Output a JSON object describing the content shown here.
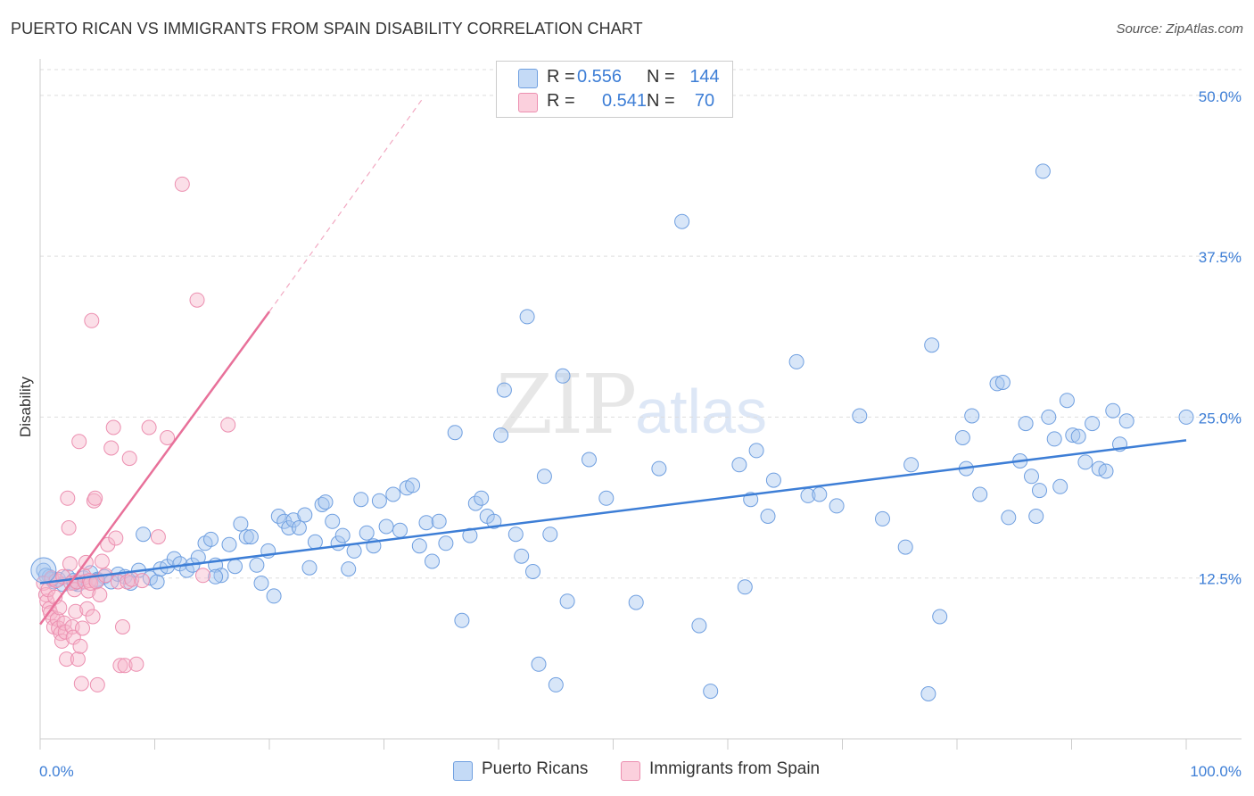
{
  "title": "PUERTO RICAN VS IMMIGRANTS FROM SPAIN DISABILITY CORRELATION CHART",
  "source": "Source: ZipAtlas.com",
  "watermark": {
    "part1": "ZIP",
    "part2": "atlas"
  },
  "legend_box": {
    "rows": [
      {
        "r_label": "R =",
        "r_value": "0.556",
        "n_label": "N =",
        "n_value": "144",
        "color": "#a9c8f0"
      },
      {
        "r_label": "R =",
        "r_value": "0.541",
        "n_label": "N =",
        "n_value": "70",
        "color": "#f6b8cb"
      }
    ]
  },
  "bottom_legend": [
    {
      "label": "Puerto Ricans",
      "color": "#a9c8f0"
    },
    {
      "label": "Immigrants from Spain",
      "color": "#f6b8cb"
    }
  ],
  "chart_data": {
    "type": "scatter",
    "title": "PUERTO RICAN VS IMMIGRANTS FROM SPAIN DISABILITY CORRELATION CHART",
    "xlabel": "",
    "ylabel": "Disability",
    "xlim": [
      0,
      100
    ],
    "ylim": [
      0,
      52
    ],
    "x_ticks_labels": [
      "0.0%",
      "100.0%"
    ],
    "y_ticks": [
      12.5,
      25.0,
      37.5,
      50.0
    ],
    "y_ticks_labels": [
      "12.5%",
      "25.0%",
      "37.5%",
      "50.0%"
    ],
    "grid": true,
    "colors": {
      "blue": "#3d7ed6",
      "pink": "#e8719a",
      "blue_fill": "#a9c8f0",
      "pink_fill": "#f6b8cb"
    },
    "series": [
      {
        "name": "Puerto Ricans",
        "color": "#3d7ed6",
        "trend": {
          "x": [
            0,
            100
          ],
          "y": [
            12.1,
            23.2
          ],
          "style": "solid"
        },
        "points": [
          [
            0.3,
            13.1
          ],
          [
            0.8,
            12.6
          ],
          [
            1.2,
            12.2
          ],
          [
            1.6,
            12.4
          ],
          [
            2.0,
            12.0
          ],
          [
            2.4,
            12.6
          ],
          [
            2.9,
            12.3
          ],
          [
            3.3,
            12.0
          ],
          [
            3.8,
            12.5
          ],
          [
            4.4,
            12.9
          ],
          [
            5.0,
            12.4
          ],
          [
            5.6,
            12.6
          ],
          [
            6.2,
            12.2
          ],
          [
            6.8,
            12.8
          ],
          [
            7.4,
            12.6
          ],
          [
            7.9,
            12.1
          ],
          [
            8.6,
            13.1
          ],
          [
            9.0,
            15.9
          ],
          [
            9.6,
            12.5
          ],
          [
            10.2,
            12.2
          ],
          [
            10.5,
            13.2
          ],
          [
            11.1,
            13.4
          ],
          [
            11.7,
            14.0
          ],
          [
            12.2,
            13.6
          ],
          [
            12.8,
            13.1
          ],
          [
            13.3,
            13.5
          ],
          [
            13.8,
            14.1
          ],
          [
            14.4,
            15.2
          ],
          [
            14.9,
            15.5
          ],
          [
            15.3,
            13.5
          ],
          [
            15.8,
            12.7
          ],
          [
            16.5,
            15.1
          ],
          [
            17.0,
            13.4
          ],
          [
            17.5,
            16.7
          ],
          [
            18.0,
            15.7
          ],
          [
            18.4,
            15.7
          ],
          [
            18.9,
            13.5
          ],
          [
            19.3,
            12.1
          ],
          [
            19.9,
            14.6
          ],
          [
            20.4,
            11.1
          ],
          [
            20.8,
            17.3
          ],
          [
            21.3,
            16.9
          ],
          [
            21.7,
            16.4
          ],
          [
            22.1,
            17.0
          ],
          [
            22.6,
            16.4
          ],
          [
            23.1,
            17.4
          ],
          [
            23.5,
            13.3
          ],
          [
            24.0,
            15.3
          ],
          [
            24.6,
            18.2
          ],
          [
            24.9,
            18.4
          ],
          [
            25.5,
            16.9
          ],
          [
            26.0,
            15.2
          ],
          [
            26.4,
            15.8
          ],
          [
            26.9,
            13.2
          ],
          [
            27.4,
            14.6
          ],
          [
            28.0,
            18.6
          ],
          [
            28.5,
            16.0
          ],
          [
            29.1,
            15.0
          ],
          [
            29.6,
            18.5
          ],
          [
            30.2,
            16.5
          ],
          [
            30.8,
            19.0
          ],
          [
            31.4,
            16.2
          ],
          [
            32.0,
            19.5
          ],
          [
            32.5,
            19.7
          ],
          [
            33.1,
            15.0
          ],
          [
            33.7,
            16.8
          ],
          [
            34.2,
            13.8
          ],
          [
            34.8,
            16.9
          ],
          [
            35.4,
            15.2
          ],
          [
            36.2,
            23.8
          ],
          [
            36.8,
            9.2
          ],
          [
            37.5,
            15.8
          ],
          [
            38.0,
            18.3
          ],
          [
            38.5,
            18.7
          ],
          [
            39.0,
            17.3
          ],
          [
            39.6,
            16.9
          ],
          [
            40.2,
            23.6
          ],
          [
            40.5,
            27.1
          ],
          [
            41.5,
            15.9
          ],
          [
            42.0,
            14.2
          ],
          [
            42.5,
            32.8
          ],
          [
            43.0,
            13.0
          ],
          [
            43.5,
            5.8
          ],
          [
            44.0,
            20.4
          ],
          [
            44.5,
            15.9
          ],
          [
            45.0,
            4.2
          ],
          [
            45.6,
            28.2
          ],
          [
            46.0,
            10.7
          ],
          [
            47.9,
            21.7
          ],
          [
            49.4,
            18.7
          ],
          [
            52.0,
            10.6
          ],
          [
            54.0,
            21.0
          ],
          [
            56.0,
            40.2
          ],
          [
            57.5,
            8.8
          ],
          [
            58.5,
            3.7
          ],
          [
            61.0,
            21.3
          ],
          [
            61.5,
            11.8
          ],
          [
            62.0,
            18.6
          ],
          [
            62.5,
            22.4
          ],
          [
            63.5,
            17.3
          ],
          [
            64.0,
            20.1
          ],
          [
            66.0,
            29.3
          ],
          [
            67.0,
            18.9
          ],
          [
            68.0,
            19.0
          ],
          [
            69.5,
            18.1
          ],
          [
            71.5,
            25.1
          ],
          [
            73.5,
            17.1
          ],
          [
            75.5,
            14.9
          ],
          [
            76.0,
            21.3
          ],
          [
            77.5,
            3.5
          ],
          [
            77.8,
            30.6
          ],
          [
            78.5,
            9.5
          ],
          [
            80.5,
            23.4
          ],
          [
            80.8,
            21.0
          ],
          [
            81.3,
            25.1
          ],
          [
            82.0,
            19.0
          ],
          [
            83.5,
            27.6
          ],
          [
            84.0,
            27.7
          ],
          [
            84.5,
            17.2
          ],
          [
            85.5,
            21.6
          ],
          [
            86.0,
            24.5
          ],
          [
            86.5,
            20.4
          ],
          [
            86.9,
            17.3
          ],
          [
            87.2,
            19.3
          ],
          [
            87.5,
            44.1
          ],
          [
            88.0,
            25.0
          ],
          [
            88.5,
            23.3
          ],
          [
            89.0,
            19.6
          ],
          [
            89.6,
            26.3
          ],
          [
            90.1,
            23.6
          ],
          [
            90.6,
            23.5
          ],
          [
            91.2,
            21.5
          ],
          [
            91.8,
            24.5
          ],
          [
            92.4,
            21.0
          ],
          [
            93.0,
            20.8
          ],
          [
            93.6,
            25.5
          ],
          [
            94.2,
            22.9
          ],
          [
            94.8,
            24.7
          ],
          [
            100,
            25.0
          ],
          [
            15.3,
            12.6
          ],
          [
            5.0,
            12.3
          ],
          [
            3.0,
            12.1
          ],
          [
            1.0,
            12.4
          ],
          [
            0.5,
            12.7
          ]
        ]
      },
      {
        "name": "Immigrants from Spain",
        "color": "#e8719a",
        "trend": {
          "x": [
            0,
            20
          ],
          "y": [
            8.9,
            33.2
          ],
          "style": "solid",
          "extended_x": [
            20,
            33.5
          ],
          "extended_y": [
            33.2,
            49.9
          ]
        },
        "points": [
          [
            0.3,
            12.1
          ],
          [
            0.5,
            11.2
          ],
          [
            0.6,
            10.7
          ],
          [
            0.7,
            11.6
          ],
          [
            0.8,
            10.1
          ],
          [
            0.9,
            9.8
          ],
          [
            1.0,
            12.5
          ],
          [
            1.1,
            9.4
          ],
          [
            1.2,
            8.7
          ],
          [
            1.3,
            11.0
          ],
          [
            1.4,
            12.3
          ],
          [
            1.5,
            9.3
          ],
          [
            1.6,
            8.6
          ],
          [
            1.7,
            10.2
          ],
          [
            1.8,
            8.2
          ],
          [
            1.9,
            7.6
          ],
          [
            2.0,
            12.6
          ],
          [
            2.1,
            9.0
          ],
          [
            2.2,
            8.3
          ],
          [
            2.3,
            6.2
          ],
          [
            2.4,
            18.7
          ],
          [
            2.5,
            16.4
          ],
          [
            2.6,
            13.6
          ],
          [
            2.7,
            12.1
          ],
          [
            2.8,
            8.7
          ],
          [
            2.9,
            7.9
          ],
          [
            3.0,
            11.6
          ],
          [
            3.1,
            9.9
          ],
          [
            3.2,
            12.2
          ],
          [
            3.3,
            6.2
          ],
          [
            3.4,
            23.1
          ],
          [
            3.5,
            7.2
          ],
          [
            3.6,
            4.3
          ],
          [
            3.7,
            8.6
          ],
          [
            3.8,
            12.7
          ],
          [
            3.9,
            12.2
          ],
          [
            4.0,
            13.7
          ],
          [
            4.1,
            10.1
          ],
          [
            4.2,
            11.5
          ],
          [
            4.3,
            12.3
          ],
          [
            4.4,
            12.1
          ],
          [
            4.5,
            32.5
          ],
          [
            4.6,
            9.5
          ],
          [
            4.7,
            18.5
          ],
          [
            4.8,
            18.7
          ],
          [
            4.9,
            12.2
          ],
          [
            5.0,
            4.2
          ],
          [
            5.2,
            11.2
          ],
          [
            5.4,
            13.8
          ],
          [
            5.7,
            12.7
          ],
          [
            5.9,
            15.1
          ],
          [
            6.2,
            22.6
          ],
          [
            6.4,
            24.2
          ],
          [
            6.6,
            15.6
          ],
          [
            6.8,
            12.2
          ],
          [
            7.0,
            5.7
          ],
          [
            7.2,
            8.7
          ],
          [
            7.4,
            5.7
          ],
          [
            7.6,
            12.2
          ],
          [
            7.8,
            21.8
          ],
          [
            8.0,
            12.4
          ],
          [
            8.4,
            5.8
          ],
          [
            8.9,
            12.3
          ],
          [
            9.5,
            24.2
          ],
          [
            10.3,
            15.7
          ],
          [
            11.1,
            23.4
          ],
          [
            12.4,
            43.1
          ],
          [
            13.7,
            34.1
          ],
          [
            14.2,
            12.7
          ],
          [
            16.4,
            24.4
          ]
        ]
      }
    ]
  }
}
